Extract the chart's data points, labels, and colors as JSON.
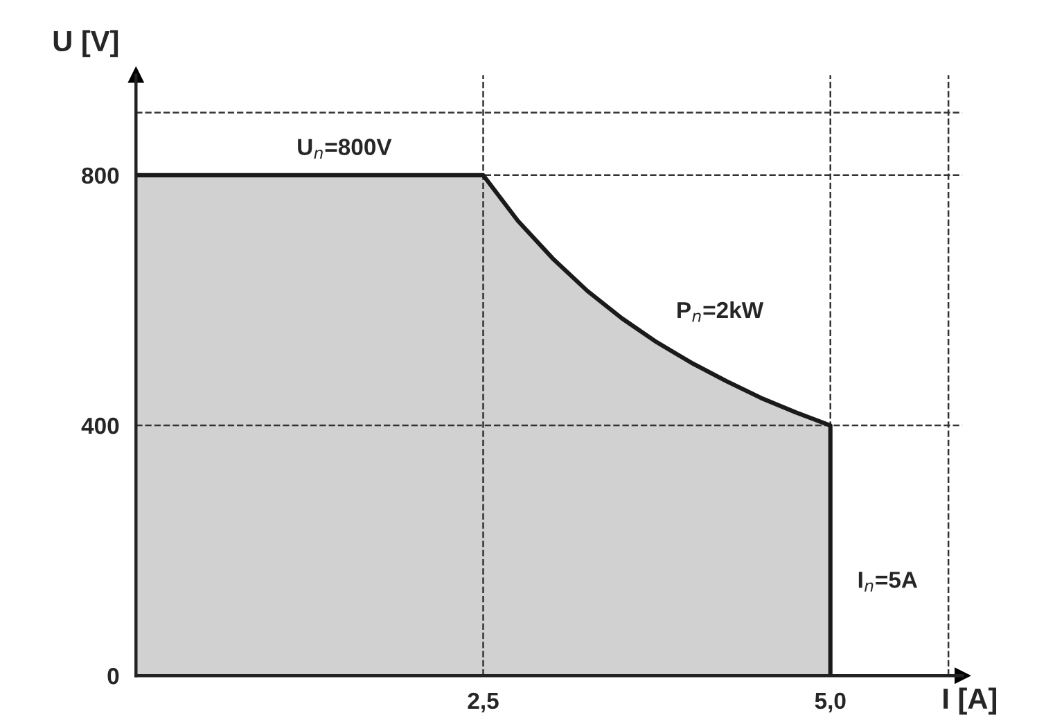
{
  "chart_data": {
    "type": "area",
    "xlabel": "I [A]",
    "ylabel": "U [V]",
    "series": [
      {
        "color": "#1a1a1a",
        "x": [
          0,
          2.5,
          2.75,
          3.0,
          3.25,
          3.5,
          3.75,
          4.0,
          4.25,
          4.5,
          4.75,
          5.0,
          5.0
        ],
        "values": [
          800,
          800,
          727,
          667,
          615,
          571,
          533,
          500,
          471,
          444,
          421,
          400,
          0
        ]
      }
    ],
    "xlim": [
      0,
      5.95
    ],
    "ylim": [
      0,
      960
    ],
    "xticks": [
      {
        "value": 2.5,
        "label": "2,5"
      },
      {
        "value": 5.0,
        "label": "5,0"
      }
    ],
    "yticks": [
      0,
      400,
      800
    ],
    "ref_lines": [
      {
        "axis": "x",
        "value": 2.5,
        "line_style": "dashed",
        "color": "#333333"
      },
      {
        "axis": "x",
        "value": 5.0,
        "line_style": "dashed",
        "color": "#333333"
      },
      {
        "axis": "x",
        "value": 5.85,
        "line_style": "dashed",
        "color": "#333333"
      },
      {
        "axis": "y",
        "value": 400,
        "line_style": "dashed",
        "color": "#333333"
      },
      {
        "axis": "y",
        "value": 800,
        "line_style": "dashed",
        "color": "#333333"
      },
      {
        "axis": "y",
        "value": 900,
        "line_style": "dashed",
        "color": "#333333"
      }
    ],
    "annotations": [
      {
        "text": "U$_{n}$=800V",
        "x": 1.5,
        "y": 800
      },
      {
        "text": "P$_{n}$=2kW",
        "x": 3.75,
        "y": 533
      },
      {
        "text": "I$_{n}$=5A",
        "x": 5.0,
        "y": 150
      }
    ],
    "grid": false,
    "legend": false,
    "line_style": "solid",
    "marker": "none"
  }
}
